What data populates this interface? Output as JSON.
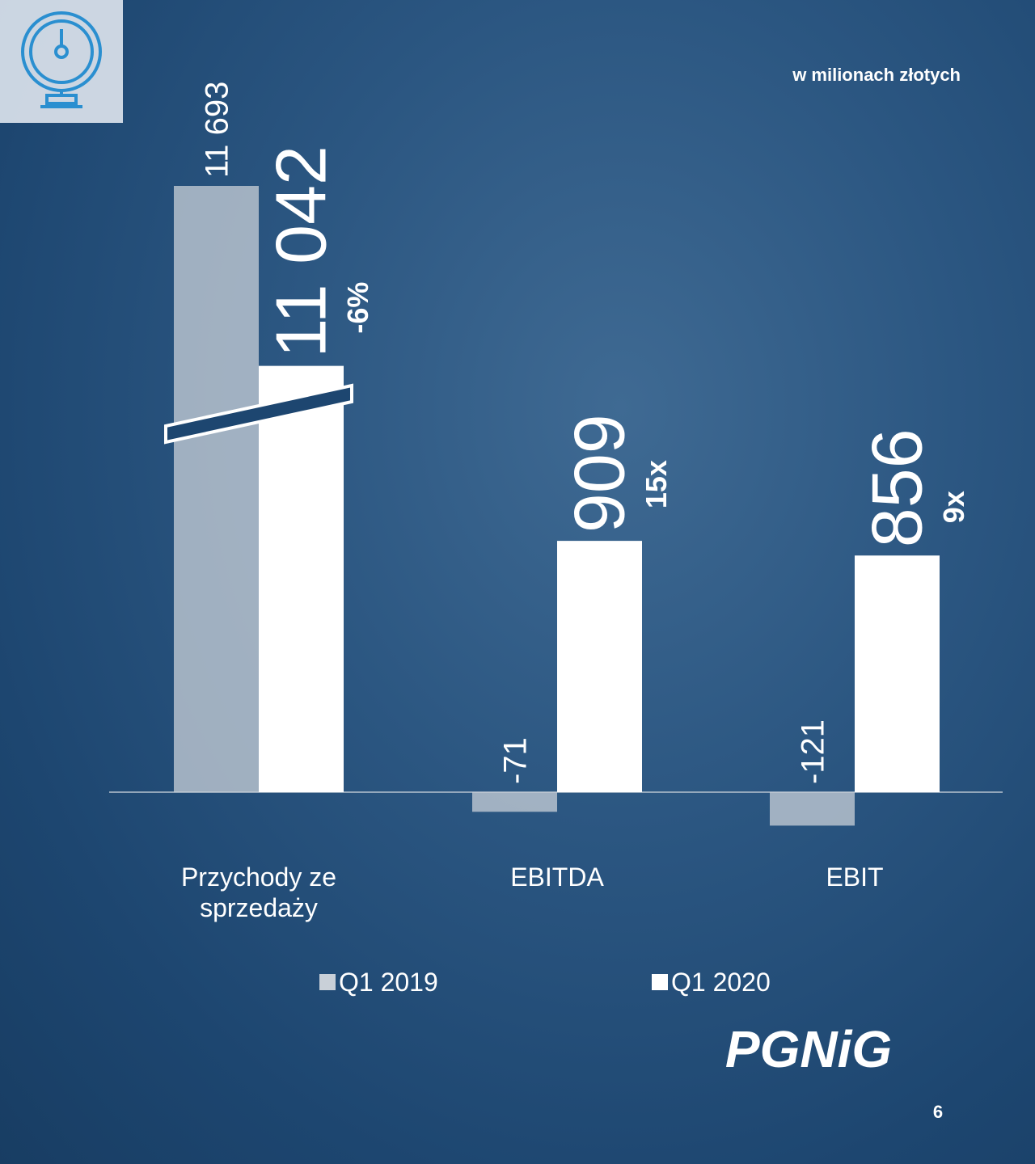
{
  "chart_data": {
    "type": "bar",
    "subtitle": "w milionach złotych",
    "categories": [
      "Przychody ze sprzedaży",
      "EBITDA",
      "EBIT"
    ],
    "series": [
      {
        "name": "Q1 2019",
        "color": "#c9d0d8",
        "values": [
          11693,
          -71,
          -121
        ],
        "value_labels": [
          "11 693",
          "-71",
          "-121"
        ]
      },
      {
        "name": "Q1 2020",
        "color": "#ffffff",
        "values": [
          11042,
          909,
          856
        ],
        "value_labels": [
          "11 042",
          "909",
          "856"
        ]
      }
    ],
    "annotations": [
      "-6%",
      "15x",
      "9x"
    ],
    "ylim": [
      -200,
      2400
    ],
    "ybreak": [
      1500,
      11000
    ],
    "logo": "PGNiG",
    "page_number": "6"
  }
}
